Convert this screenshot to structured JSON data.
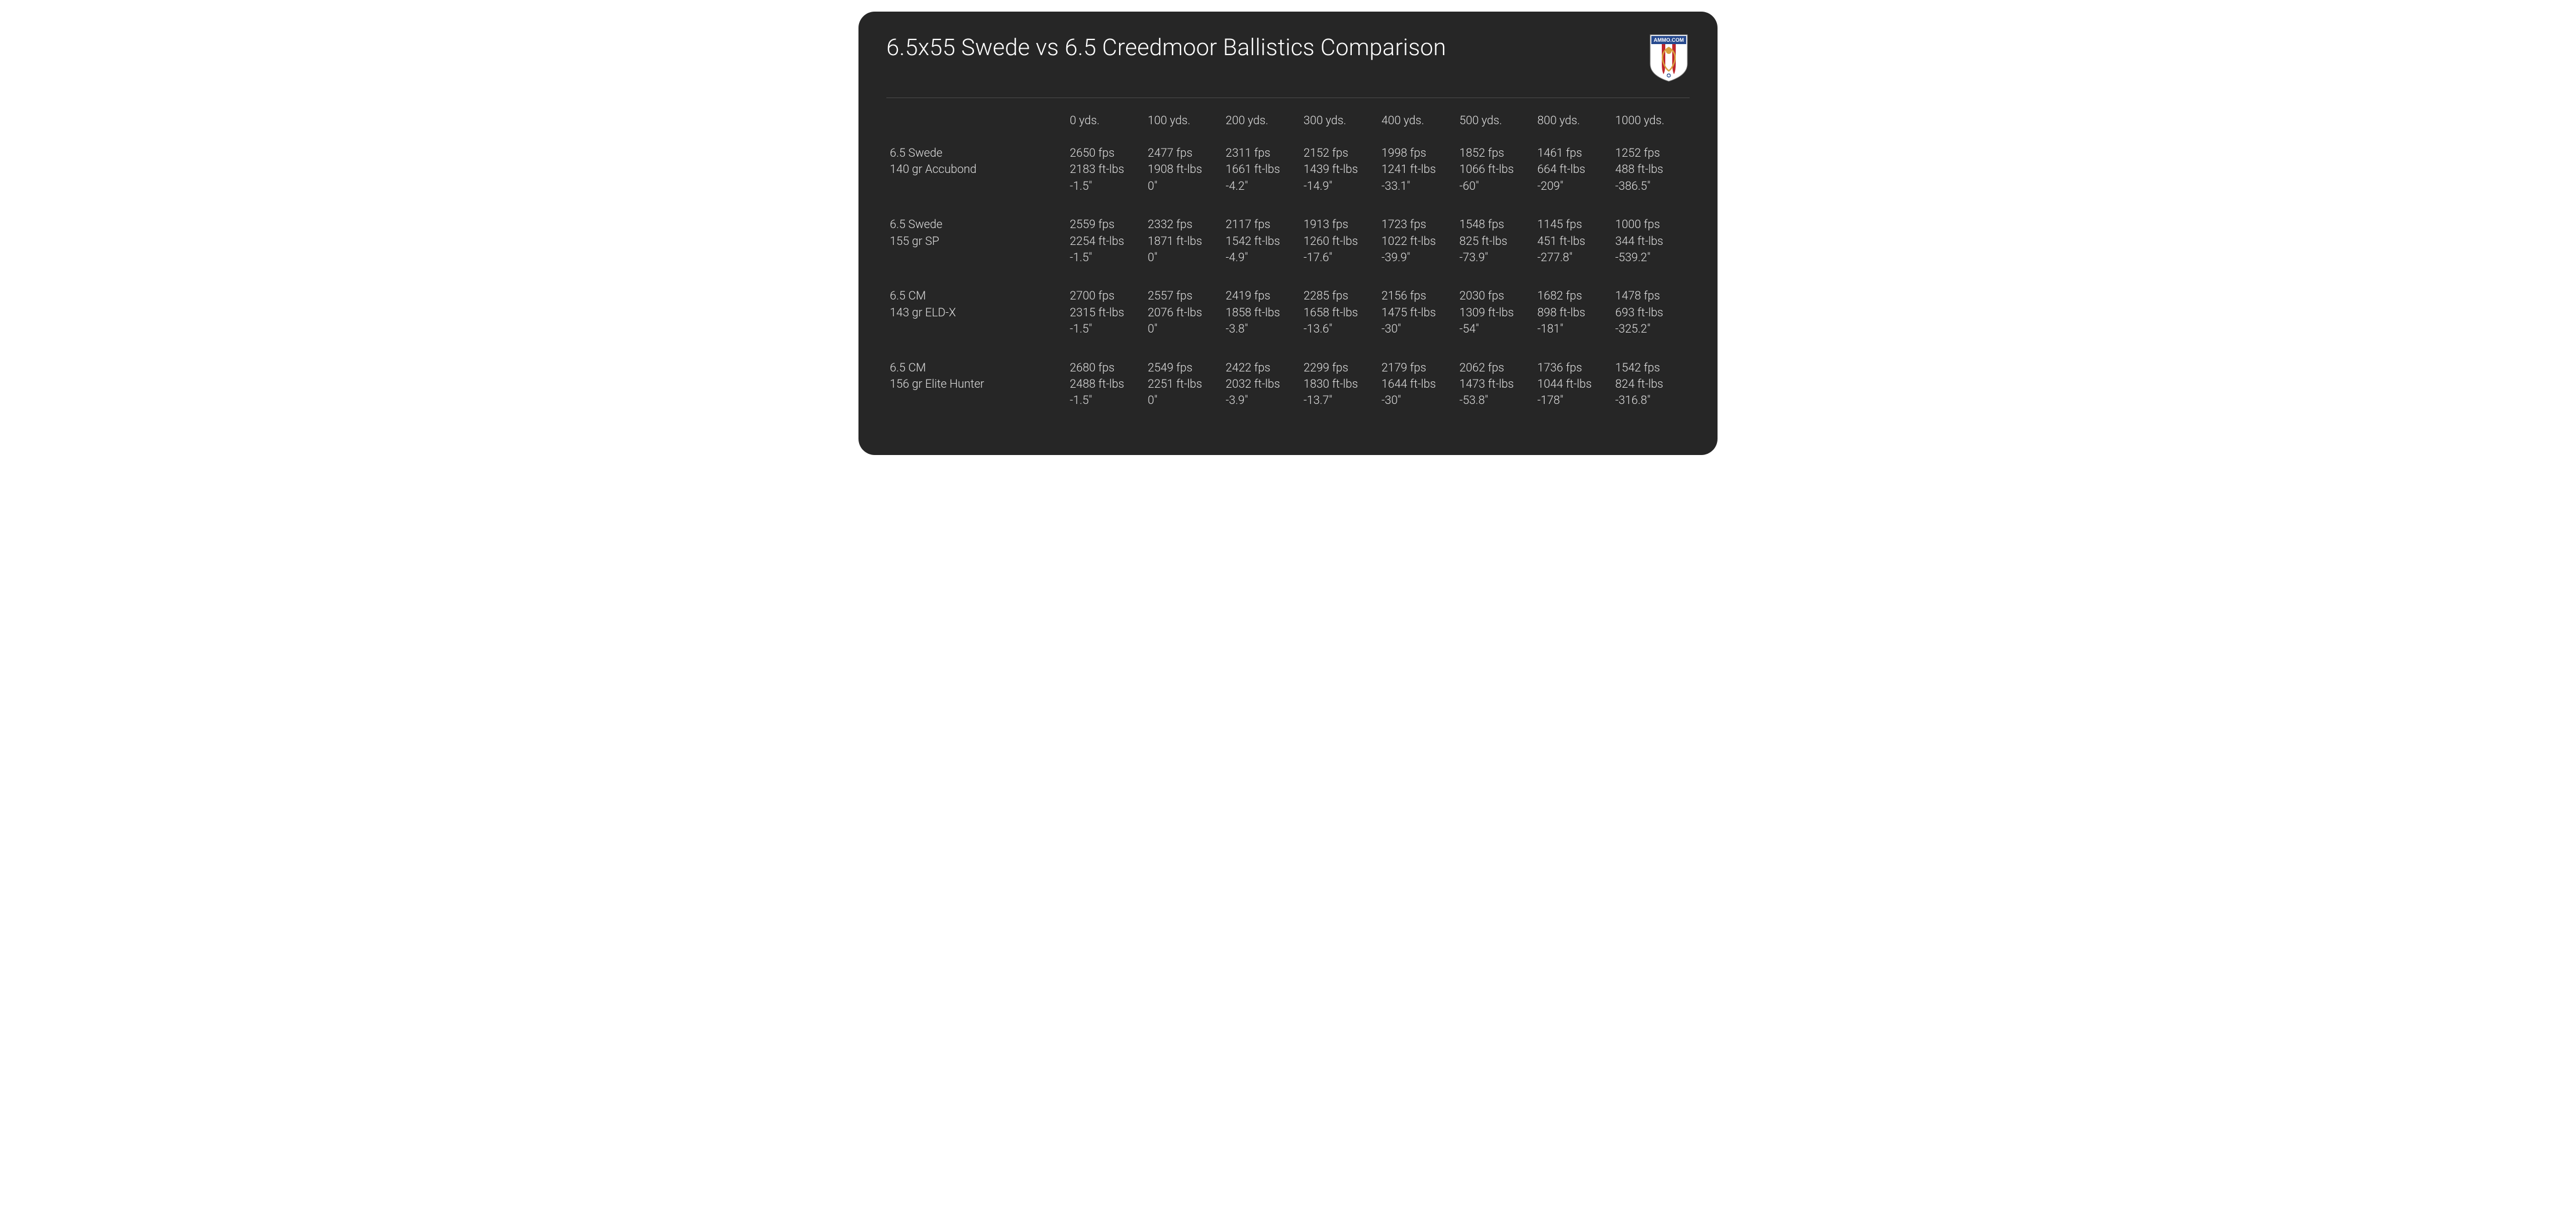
{
  "title": "6.5x55 Swede vs 6.5 Creedmoor Ballistics Comparison",
  "logo_text": "AMMO.COM",
  "logo_colors": {
    "blue": "#274a8f",
    "red": "#c0272d",
    "white": "#ffffff",
    "gold": "#d8a13e"
  },
  "background_color": "#262626",
  "text_color": "#e0e0e0",
  "columns": [
    "0 yds.",
    "100 yds.",
    "200 yds.",
    "300 yds.",
    "400 yds.",
    "500 yds.",
    "800 yds.",
    "1000 yds."
  ],
  "rows": [
    {
      "label_line1": "6.5 Swede",
      "label_line2": "140 gr Accubond",
      "cells": [
        [
          "2650 fps",
          "2183 ft-lbs",
          "-1.5\""
        ],
        [
          "2477 fps",
          "1908 ft-lbs",
          "0\""
        ],
        [
          "2311 fps",
          "1661 ft-lbs",
          "-4.2\""
        ],
        [
          "2152 fps",
          "1439 ft-lbs",
          "-14.9\""
        ],
        [
          "1998 fps",
          "1241 ft-lbs",
          "-33.1\""
        ],
        [
          "1852 fps",
          "1066 ft-lbs",
          "-60\""
        ],
        [
          "1461 fps",
          "664 ft-lbs",
          "-209\""
        ],
        [
          "1252 fps",
          "488 ft-lbs",
          "-386.5\""
        ]
      ]
    },
    {
      "label_line1": "6.5 Swede",
      "label_line2": "155 gr SP",
      "cells": [
        [
          "2559 fps",
          "2254 ft-lbs",
          "-1.5\""
        ],
        [
          "2332 fps",
          "1871 ft-lbs",
          "0\""
        ],
        [
          "2117 fps",
          "1542 ft-lbs",
          "-4.9\""
        ],
        [
          "1913 fps",
          "1260 ft-lbs",
          "-17.6\""
        ],
        [
          "1723 fps",
          "1022 ft-lbs",
          "-39.9\""
        ],
        [
          "1548 fps",
          "825 ft-lbs",
          "-73.9\""
        ],
        [
          "1145 fps",
          "451 ft-lbs",
          "-277.8\""
        ],
        [
          "1000 fps",
          "344 ft-lbs",
          "-539.2\""
        ]
      ]
    },
    {
      "label_line1": "6.5 CM",
      "label_line2": "143 gr ELD-X",
      "cells": [
        [
          "2700 fps",
          "2315 ft-lbs",
          "-1.5\""
        ],
        [
          "2557 fps",
          "2076 ft-lbs",
          "0\""
        ],
        [
          "2419 fps",
          "1858 ft-lbs",
          "-3.8\""
        ],
        [
          "2285 fps",
          "1658 ft-lbs",
          "-13.6\""
        ],
        [
          "2156 fps",
          "1475 ft-lbs",
          "-30\""
        ],
        [
          "2030 fps",
          "1309 ft-lbs",
          "-54\""
        ],
        [
          "1682 fps",
          "898 ft-lbs",
          "-181\""
        ],
        [
          "1478 fps",
          "693 ft-lbs",
          "-325.2\""
        ]
      ]
    },
    {
      "label_line1": "6.5 CM",
      "label_line2": "156 gr Elite Hunter",
      "cells": [
        [
          "2680 fps",
          "2488 ft-lbs",
          "-1.5\""
        ],
        [
          "2549 fps",
          "2251 ft-lbs",
          "0\""
        ],
        [
          "2422 fps",
          "2032 ft-lbs",
          "-3.9\""
        ],
        [
          "2299 fps",
          "1830 ft-lbs",
          "-13.7\""
        ],
        [
          "2179 fps",
          "1644 ft-lbs",
          "-30\""
        ],
        [
          "2062 fps",
          "1473 ft-lbs",
          "-53.8\""
        ],
        [
          "1736 fps",
          "1044 ft-lbs",
          "-178\""
        ],
        [
          "1542 fps",
          "824 ft-lbs",
          "-316.8\""
        ]
      ]
    }
  ]
}
